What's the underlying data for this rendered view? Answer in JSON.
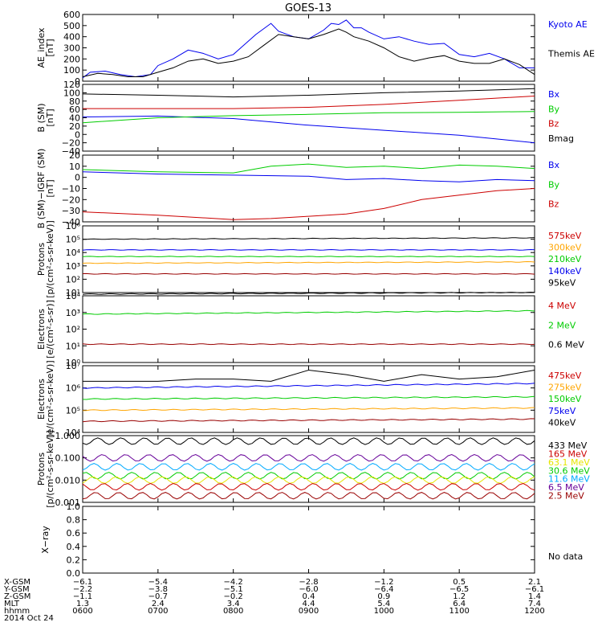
{
  "title": "GOES-13",
  "no_data_text": "No data",
  "colors": {
    "black": "#000000",
    "blue": "#0000ee",
    "green": "#00cc00",
    "red": "#cc0000",
    "orange": "#ffa500",
    "dkred": "#990000",
    "cyan": "#00aaff",
    "yellow": "#e6e600",
    "purple": "#660099"
  },
  "chart_data": [
    {
      "type": "line",
      "ylabel": "AE_index\n[nT]",
      "ylim": [
        0,
        600
      ],
      "y_ticks": [
        "0",
        "100",
        "200",
        "300",
        "400",
        "500",
        "600"
      ],
      "legend": [
        {
          "name": "Kyoto AE",
          "color": "blue"
        },
        {
          "name": "Themis AE",
          "color": "black"
        }
      ],
      "series": [
        {
          "name": "Kyoto AE",
          "color": "blue",
          "x": [
            6.0,
            6.1,
            6.3,
            6.5,
            6.7,
            6.9,
            7.0,
            7.2,
            7.4,
            7.6,
            7.8,
            8.0,
            8.1,
            8.3,
            8.5,
            8.6,
            8.8,
            9.0,
            9.2,
            9.3,
            9.4,
            9.5,
            9.6,
            9.7,
            9.8,
            10.0,
            10.2,
            10.4,
            10.6,
            10.8,
            11.0,
            11.2,
            11.4,
            11.6,
            11.8,
            12.0
          ],
          "y": [
            30,
            80,
            90,
            60,
            40,
            60,
            140,
            200,
            280,
            250,
            200,
            240,
            300,
            420,
            520,
            450,
            400,
            380,
            460,
            520,
            510,
            550,
            480,
            480,
            440,
            380,
            400,
            360,
            330,
            340,
            240,
            220,
            250,
            200,
            120,
            120
          ]
        },
        {
          "name": "Themis AE",
          "color": "black",
          "x": [
            6.0,
            6.2,
            6.4,
            6.6,
            6.8,
            7.0,
            7.2,
            7.4,
            7.6,
            7.8,
            8.0,
            8.2,
            8.4,
            8.6,
            8.8,
            9.0,
            9.2,
            9.4,
            9.5,
            9.6,
            9.8,
            10.0,
            10.2,
            10.4,
            10.6,
            10.8,
            11.0,
            11.2,
            11.4,
            11.6,
            11.8,
            12.0
          ],
          "y": [
            40,
            70,
            60,
            40,
            40,
            80,
            120,
            180,
            200,
            160,
            180,
            220,
            320,
            420,
            400,
            380,
            420,
            470,
            440,
            400,
            360,
            300,
            220,
            180,
            210,
            230,
            180,
            160,
            160,
            200,
            150,
            60
          ]
        }
      ]
    },
    {
      "type": "line",
      "ylabel": "B (SM)\n[nT]",
      "ylim": [
        -40,
        120
      ],
      "y_ticks": [
        "−40",
        "−20",
        "0",
        "20",
        "40",
        "60",
        "80",
        "100",
        "120"
      ],
      "legend": [
        {
          "name": "Bx",
          "color": "blue"
        },
        {
          "name": "By",
          "color": "green"
        },
        {
          "name": "Bz",
          "color": "red"
        },
        {
          "name": "Bmag",
          "color": "black"
        }
      ],
      "series": [
        {
          "name": "Bmag",
          "color": "black",
          "x": [
            6,
            7,
            8,
            9,
            10,
            11,
            12
          ],
          "y": [
            97,
            94,
            90,
            94,
            100,
            104,
            110
          ]
        },
        {
          "name": "Bx",
          "color": "blue",
          "x": [
            6,
            7,
            8,
            9,
            10,
            11,
            12
          ],
          "y": [
            42,
            44,
            38,
            22,
            10,
            -2,
            -20
          ]
        },
        {
          "name": "By",
          "color": "green",
          "x": [
            6,
            7,
            8,
            9,
            10,
            11,
            12
          ],
          "y": [
            28,
            40,
            45,
            48,
            52,
            53,
            55
          ]
        },
        {
          "name": "Bz",
          "color": "red",
          "x": [
            6,
            7,
            8,
            9,
            10,
            11,
            12
          ],
          "y": [
            62,
            62,
            62,
            65,
            72,
            82,
            92
          ]
        }
      ]
    },
    {
      "type": "line",
      "ylabel": "B (SM)−IGRF (SM)\n[nT]",
      "ylim": [
        -40,
        20
      ],
      "y_ticks": [
        "−40",
        "−30",
        "−20",
        "−10",
        "0",
        "10",
        "20"
      ],
      "legend": [
        {
          "name": "Bx",
          "color": "blue"
        },
        {
          "name": "By",
          "color": "green"
        },
        {
          "name": "Bz",
          "color": "red"
        }
      ],
      "series": [
        {
          "name": "Bx",
          "color": "blue",
          "x": [
            6,
            7,
            8,
            9,
            9.5,
            10,
            10.5,
            11,
            11.5,
            12
          ],
          "y": [
            5,
            3,
            2,
            1,
            -2,
            -1,
            -3,
            -4,
            -2,
            -3
          ]
        },
        {
          "name": "By",
          "color": "green",
          "x": [
            6,
            7,
            8,
            8.5,
            9,
            9.5,
            10,
            10.5,
            11,
            11.5,
            12
          ],
          "y": [
            7,
            5,
            4,
            10,
            12,
            9,
            10,
            8,
            11,
            10,
            8
          ]
        },
        {
          "name": "Bz",
          "color": "red",
          "x": [
            6,
            7,
            8,
            8.5,
            9,
            9.5,
            10,
            10.5,
            11,
            11.5,
            12
          ],
          "y": [
            -31,
            -34,
            -38,
            -37,
            -35,
            -33,
            -28,
            -20,
            -16,
            -12,
            -10
          ]
        }
      ]
    },
    {
      "type": "line",
      "log": true,
      "ylabel": "Protons\n[p/(cm²-s-sr-keV)]",
      "ylim": [
        1,
        6
      ],
      "y_ticks": [
        "10¹",
        "10²",
        "10³",
        "10⁴",
        "10⁵",
        "10⁶"
      ],
      "legend": [
        {
          "name": "575keV",
          "color": "red"
        },
        {
          "name": "300keV",
          "color": "orange"
        },
        {
          "name": "210keV",
          "color": "green"
        },
        {
          "name": "140keV",
          "color": "blue"
        },
        {
          "name": "95keV",
          "color": "black"
        }
      ],
      "series": [
        {
          "name": "95keV",
          "color": "black",
          "x": [
            6,
            12
          ],
          "y": [
            5.0,
            5.1
          ]
        },
        {
          "name": "140keV",
          "color": "blue",
          "x": [
            6,
            12
          ],
          "y": [
            4.2,
            4.2
          ]
        },
        {
          "name": "210keV",
          "color": "green",
          "x": [
            6,
            12
          ],
          "y": [
            3.7,
            3.7
          ]
        },
        {
          "name": "300keV",
          "color": "orange",
          "x": [
            6,
            12
          ],
          "y": [
            3.2,
            3.3
          ]
        },
        {
          "name": "575keV",
          "color": "dkred",
          "x": [
            6,
            12
          ],
          "y": [
            2.4,
            2.4
          ]
        }
      ]
    },
    {
      "type": "line",
      "log": true,
      "ylabel": "Electrons\n[e/(cm²-s-sr)]",
      "ylim": [
        0,
        4
      ],
      "y_ticks": [
        "10⁰",
        "10¹",
        "10²",
        "10³",
        "10⁴"
      ],
      "legend": [
        {
          "name": "4 MeV",
          "color": "red"
        },
        {
          "name": "2 MeV",
          "color": "green"
        },
        {
          "name": "0.6 MeV",
          "color": "black"
        }
      ],
      "series": [
        {
          "name": "0.6 MeV",
          "color": "black",
          "x": [
            6,
            12
          ],
          "y": [
            4.1,
            4.2
          ]
        },
        {
          "name": "2 MeV",
          "color": "green",
          "x": [
            6,
            12
          ],
          "y": [
            2.9,
            3.1
          ]
        },
        {
          "name": "4 MeV",
          "color": "dkred",
          "x": [
            6,
            12
          ],
          "y": [
            1.1,
            1.1
          ]
        }
      ]
    },
    {
      "type": "line",
      "log": true,
      "ylabel": "Electrons\n[e/(cm²-s-sr-keV)]",
      "ylim": [
        4,
        7
      ],
      "y_ticks": [
        "10⁴",
        "10⁵",
        "10⁶",
        "10⁷"
      ],
      "legend": [
        {
          "name": "475keV",
          "color": "red"
        },
        {
          "name": "275keV",
          "color": "orange"
        },
        {
          "name": "150keV",
          "color": "green"
        },
        {
          "name": "75keV",
          "color": "blue"
        },
        {
          "name": "40keV",
          "color": "black"
        }
      ],
      "series": [
        {
          "name": "40keV",
          "color": "black",
          "x": [
            6,
            7,
            7.5,
            8,
            8.5,
            9,
            9.5,
            10,
            10.5,
            11,
            11.5,
            12
          ],
          "y": [
            6.3,
            6.3,
            6.4,
            6.4,
            6.3,
            6.8,
            6.6,
            6.3,
            6.6,
            6.4,
            6.5,
            6.8
          ]
        },
        {
          "name": "75keV",
          "color": "blue",
          "x": [
            6,
            12
          ],
          "y": [
            6.0,
            6.2
          ]
        },
        {
          "name": "150keV",
          "color": "green",
          "x": [
            6,
            12
          ],
          "y": [
            5.5,
            5.6
          ]
        },
        {
          "name": "275keV",
          "color": "orange",
          "x": [
            6,
            12
          ],
          "y": [
            5.0,
            5.1
          ]
        },
        {
          "name": "475keV",
          "color": "dkred",
          "x": [
            6,
            12
          ],
          "y": [
            4.5,
            4.6
          ]
        }
      ]
    },
    {
      "type": "line",
      "log": true,
      "ylabel": "Protons\n[p/(cm²-s-sr-keV)]",
      "ylim": [
        -3,
        0
      ],
      "y_ticks": [
        "0.001",
        "0.010",
        "0.100",
        "1.000"
      ],
      "legend": [
        {
          "name": "433 MeV",
          "color": "black"
        },
        {
          "name": "165 MeV",
          "color": "red"
        },
        {
          "name": "63.1 MeV",
          "color": "yellow"
        },
        {
          "name": "30.6 MeV",
          "color": "green"
        },
        {
          "name": "11.6 MeV",
          "color": "cyan"
        },
        {
          "name": "6.5 MeV",
          "color": "purple"
        },
        {
          "name": "2.5 MeV",
          "color": "dkred"
        }
      ],
      "series": [
        {
          "name": "433 MeV",
          "color": "black",
          "x": [
            6,
            12
          ],
          "y": [
            -0.25,
            -0.25
          ]
        },
        {
          "name": "6.5 MeV",
          "color": "purple",
          "x": [
            6,
            12
          ],
          "y": [
            -1.0,
            -1.0
          ]
        },
        {
          "name": "11.6 MeV",
          "color": "cyan",
          "x": [
            6,
            12
          ],
          "y": [
            -1.4,
            -1.4
          ]
        },
        {
          "name": "30.6 MeV",
          "color": "green",
          "x": [
            6,
            12
          ],
          "y": [
            -1.8,
            -1.8
          ]
        },
        {
          "name": "63.1 MeV",
          "color": "yellow",
          "x": [
            6,
            12
          ],
          "y": [
            -2.0,
            -2.0
          ]
        },
        {
          "name": "165 MeV",
          "color": "red",
          "x": [
            6,
            12
          ],
          "y": [
            -2.3,
            -2.3
          ]
        },
        {
          "name": "2.5 MeV",
          "color": "dkred",
          "x": [
            6,
            12
          ],
          "y": [
            -2.7,
            -2.7
          ]
        }
      ]
    },
    {
      "type": "line",
      "ylabel": "X−ray",
      "ylim": [
        0,
        1
      ],
      "y_ticks": [
        "0.0",
        "0.2",
        "0.4",
        "0.6",
        "0.8",
        "1.0"
      ],
      "legend": [],
      "series": []
    }
  ],
  "x_ticks": [
    "0600",
    "0700",
    "0800",
    "0900",
    "1000",
    "1100",
    "1200"
  ],
  "ephemeris": {
    "labels": [
      "X-GSM",
      "Y-GSM",
      "Z-GSM",
      "MLT",
      "hhmm"
    ],
    "rows": [
      [
        "−6.1",
        "−5.4",
        "−4.2",
        "−2.8",
        "−1.2",
        "0.5",
        "2.1"
      ],
      [
        "−2.2",
        "−3.8",
        "−5.1",
        "−6.0",
        "−6.4",
        "−6.5",
        "−6.1"
      ],
      [
        "−1.1",
        "−0.7",
        "−0.2",
        "0.4",
        "0.9",
        "1.2",
        "1.4"
      ],
      [
        "1.3",
        "2.4",
        "3.4",
        "4.4",
        "5.4",
        "6.4",
        "7.4"
      ],
      [
        "0600",
        "0700",
        "0800",
        "0900",
        "1000",
        "1100",
        "1200"
      ]
    ]
  },
  "date": "2014 Oct 24"
}
